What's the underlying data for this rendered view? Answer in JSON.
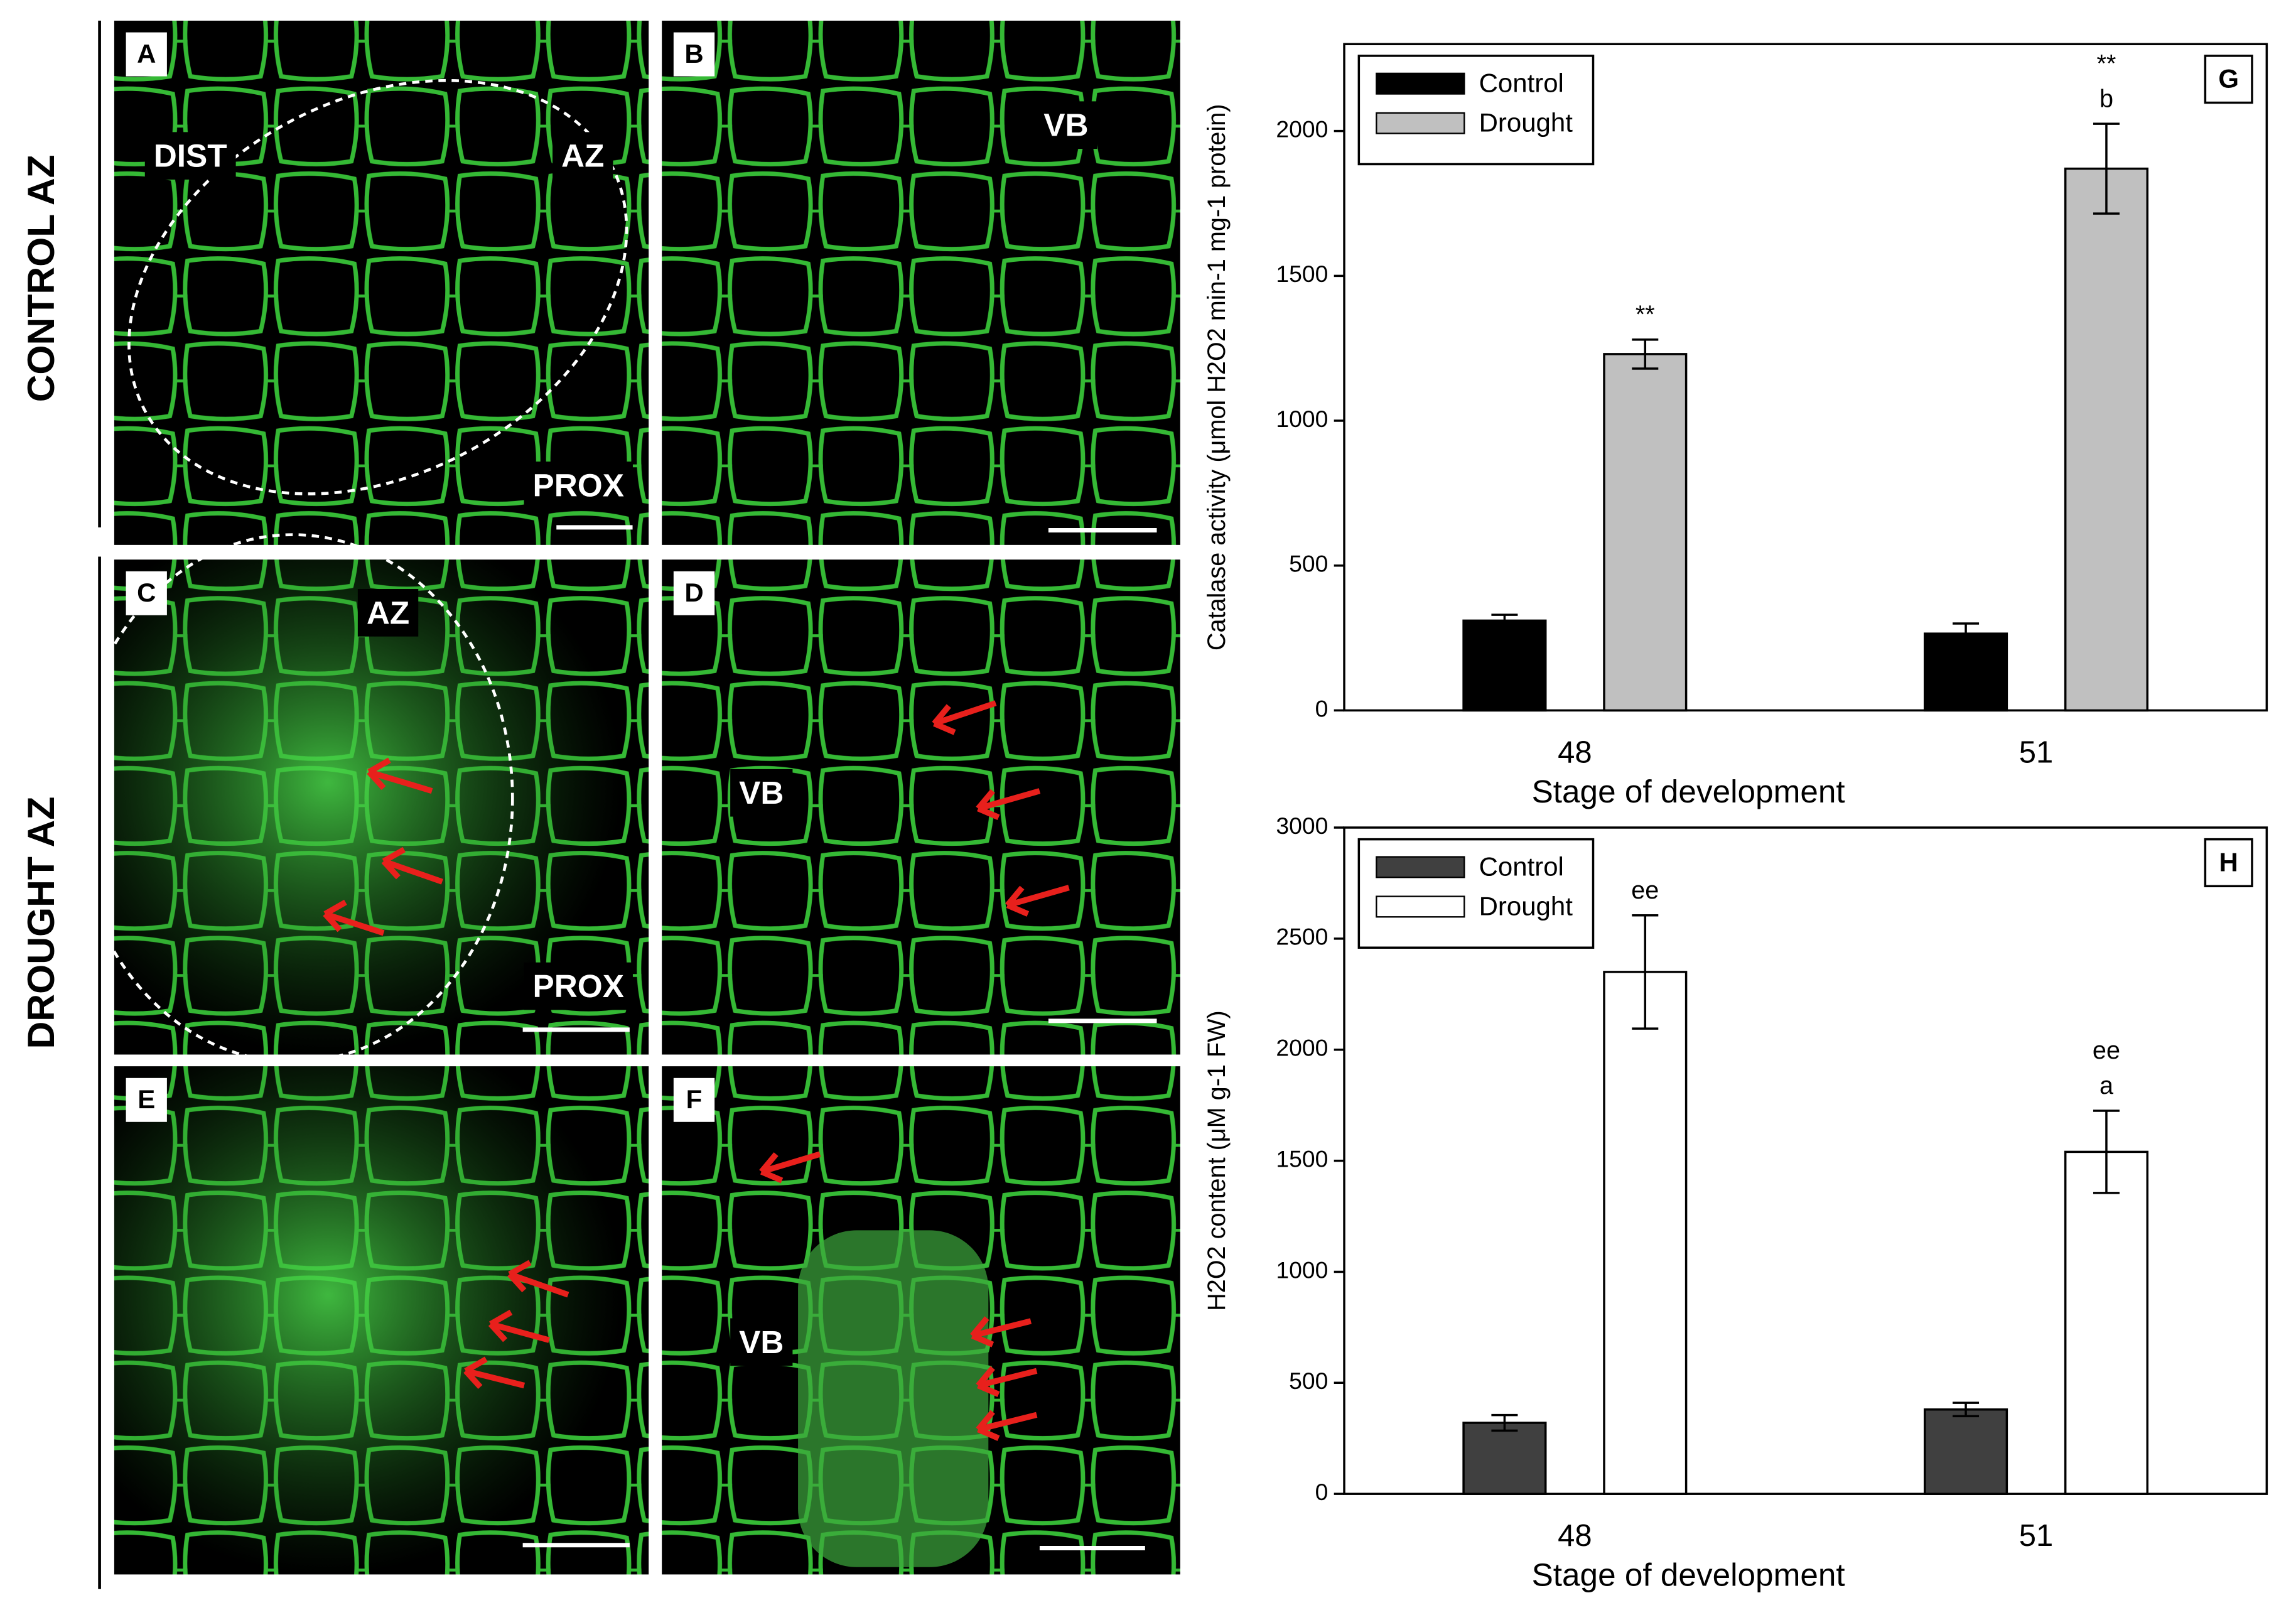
{
  "figure": {
    "row_labels": [
      "CONTROL AZ",
      "DROUGHT AZ"
    ],
    "panels": [
      {
        "letter": "A",
        "labels": [
          "DIST",
          "AZ",
          "PROX"
        ]
      },
      {
        "letter": "B",
        "labels": [
          "VB"
        ]
      },
      {
        "letter": "C",
        "labels": [
          "AZ",
          "PROX"
        ]
      },
      {
        "letter": "D",
        "labels": [
          "VB"
        ]
      },
      {
        "letter": "E",
        "labels": []
      },
      {
        "letter": "F",
        "labels": [
          "VB"
        ]
      }
    ]
  },
  "chart_data": [
    {
      "type": "bar",
      "panel": "G",
      "x_label": "Stage of development",
      "y_label": "Catalase activity (μmol H2O2 min-1 mg-1 protein)",
      "categories": [
        "48",
        "51"
      ],
      "series": [
        {
          "name": "Control",
          "color": "#000000",
          "values": [
            310,
            265
          ],
          "errors": [
            20,
            35
          ],
          "annotations": [
            [],
            []
          ]
        },
        {
          "name": "Drought",
          "color": "#c0c0c0",
          "values": [
            1230,
            1870
          ],
          "errors": [
            50,
            155
          ],
          "annotations": [
            [
              "**"
            ],
            [
              "**",
              "b"
            ]
          ]
        }
      ],
      "ylim": [
        0,
        2300
      ],
      "yticks": [
        0,
        500,
        1000,
        1500,
        2000
      ],
      "legend": "upper left"
    },
    {
      "type": "bar",
      "panel": "H",
      "x_label": "Stage of development",
      "y_label": "H2O2 content (μM g-1 FW)",
      "categories": [
        "48",
        "51"
      ],
      "series": [
        {
          "name": "Control",
          "color": "#404040",
          "values": [
            320,
            380
          ],
          "errors": [
            35,
            30
          ],
          "annotations": [
            [],
            []
          ]
        },
        {
          "name": "Drought",
          "color": "#ffffff",
          "values": [
            2350,
            1540
          ],
          "errors": [
            255,
            185
          ],
          "annotations": [
            [
              "ee"
            ],
            [
              "ee",
              "a"
            ]
          ]
        }
      ],
      "ylim": [
        0,
        3000
      ],
      "yticks": [
        0,
        500,
        1000,
        1500,
        2000,
        2500,
        3000
      ],
      "legend": "upper left"
    }
  ]
}
